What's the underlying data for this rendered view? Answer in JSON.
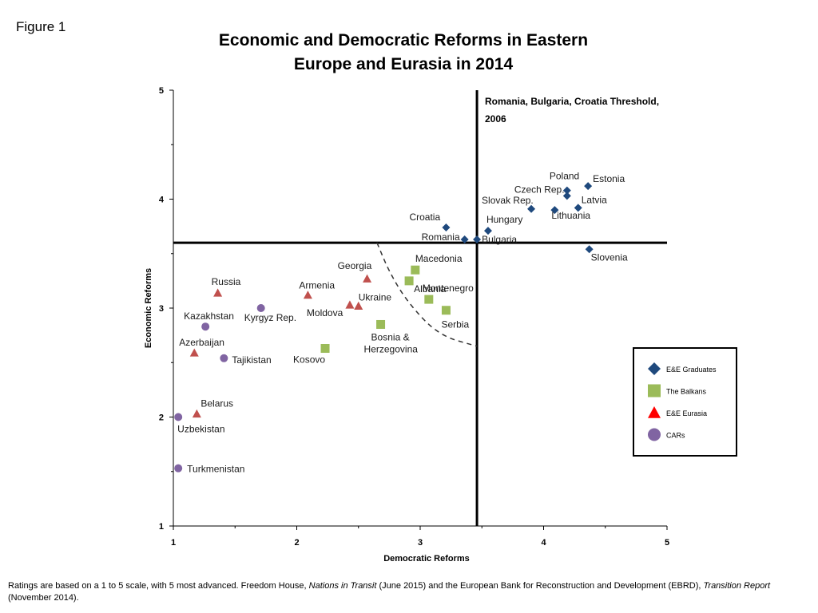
{
  "figure_label": "Figure 1",
  "chart_data": {
    "type": "scatter",
    "title_line1": "Economic and Democratic Reforms in Eastern",
    "title_line2": "Europe and Eurasia in 2014",
    "xlabel": "Democratic Reforms",
    "ylabel": "Economic Reforms",
    "xlim": [
      1,
      5
    ],
    "ylim": [
      1,
      5
    ],
    "x_ticks": [
      "1",
      "2",
      "3",
      "4",
      "5"
    ],
    "y_ticks": [
      "1",
      "2",
      "3",
      "4",
      "5"
    ],
    "threshold": {
      "x": 3.46,
      "y": 3.6,
      "label_line1": "Romania, Bulgaria, Croatia Threshold,",
      "label_line2": "2006"
    },
    "curve": [
      [
        2.65,
        3.6
      ],
      [
        2.75,
        3.33
      ],
      [
        2.9,
        3.05
      ],
      [
        3.15,
        2.75
      ],
      [
        3.46,
        2.65
      ]
    ],
    "series": [
      {
        "name": "E&E Graduates",
        "marker": "diamond",
        "color": "#1F497D",
        "points": [
          {
            "label": "Poland",
            "x": 4.19,
            "y": 4.08
          },
          {
            "label": "Estonia",
            "x": 4.36,
            "y": 4.12
          },
          {
            "label": "Czech Rep.",
            "x": 4.19,
            "y": 4.03
          },
          {
            "label": "Slovak Rep.",
            "x": 3.9,
            "y": 3.91
          },
          {
            "label": "Latvia",
            "x": 4.28,
            "y": 3.92
          },
          {
            "label": "Lithuania",
            "x": 4.09,
            "y": 3.9
          },
          {
            "label": "Hungary",
            "x": 3.55,
            "y": 3.71
          },
          {
            "label": "Croatia",
            "x": 3.21,
            "y": 3.74
          },
          {
            "label": "Romania",
            "x": 3.36,
            "y": 3.63
          },
          {
            "label": "Bulgaria",
            "x": 3.46,
            "y": 3.63
          },
          {
            "label": "Slovenia",
            "x": 4.37,
            "y": 3.54
          }
        ]
      },
      {
        "name": "The Balkans",
        "marker": "square",
        "color": "#9BBB59",
        "points": [
          {
            "label": "Macedonia",
            "x": 2.96,
            "y": 3.35
          },
          {
            "label": "Albania",
            "x": 2.91,
            "y": 3.25
          },
          {
            "label": "Montenegro",
            "x": 3.07,
            "y": 3.08
          },
          {
            "label": "Serbia",
            "x": 3.21,
            "y": 2.98
          },
          {
            "label": "Bosnia &",
            "x": 2.68,
            "y": 2.85
          },
          {
            "label": "Kosovo",
            "x": 2.23,
            "y": 2.63
          }
        ],
        "extra_label": "Herzegovina"
      },
      {
        "name": "E&E Eurasia",
        "marker": "triangle",
        "color": "#C0504D",
        "points": [
          {
            "label": "Georgia",
            "x": 2.57,
            "y": 3.27
          },
          {
            "label": "Russia",
            "x": 1.36,
            "y": 3.14
          },
          {
            "label": "Armenia",
            "x": 2.09,
            "y": 3.12
          },
          {
            "label": "Moldova",
            "x": 2.43,
            "y": 3.03
          },
          {
            "label": "Ukraine",
            "x": 2.5,
            "y": 3.02
          },
          {
            "label": "Azerbaijan",
            "x": 1.17,
            "y": 2.59
          },
          {
            "label": "Belarus",
            "x": 1.19,
            "y": 2.03
          }
        ]
      },
      {
        "name": "CARs",
        "marker": "circle",
        "color": "#8064A2",
        "points": [
          {
            "label": "Kyrgyz Rep.",
            "x": 1.71,
            "y": 3.0
          },
          {
            "label": "Kazakhstan",
            "x": 1.26,
            "y": 2.83
          },
          {
            "label": "Tajikistan",
            "x": 1.41,
            "y": 2.54
          },
          {
            "label": "Uzbekistan",
            "x": 1.04,
            "y": 2.0
          },
          {
            "label": "Turkmenistan",
            "x": 1.04,
            "y": 1.53
          }
        ]
      }
    ],
    "legend": [
      {
        "label": "E&E Graduates",
        "marker": "diamond",
        "color": "#1F497D"
      },
      {
        "label": "The Balkans",
        "marker": "square",
        "color": "#9BBB59"
      },
      {
        "label": "E&E Eurasia",
        "marker": "triangle",
        "color": "#FF0000"
      },
      {
        "label": "CARs",
        "marker": "circle",
        "color": "#8064A2"
      }
    ],
    "legend_position": "right"
  },
  "footnote": {
    "part1": "Ratings are based on a 1 to 5 scale, with 5 most advanced. Freedom House, ",
    "source1": "Nations in Transit",
    "part2": " (June 2015) and the European Bank for Reconstruction and Development (EBRD), ",
    "source2": "Transition Report",
    "part3": " (November 2014)."
  }
}
